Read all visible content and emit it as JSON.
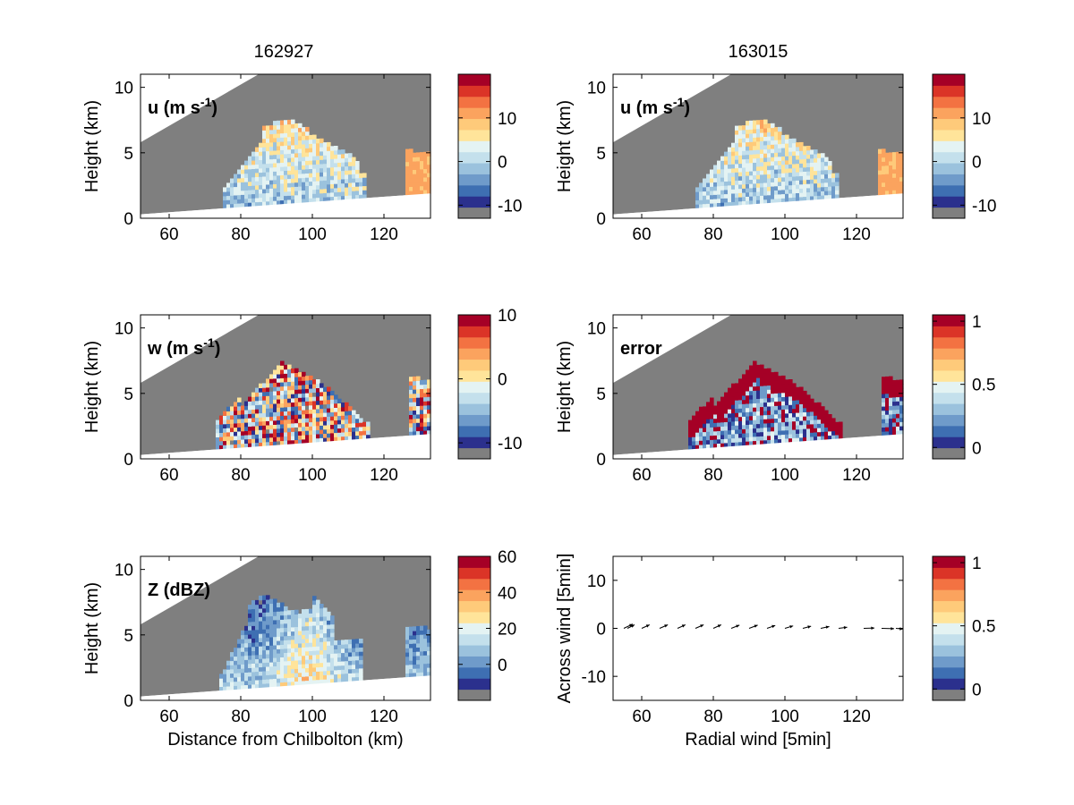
{
  "chart_data": {
    "type": "heatmap",
    "column_titles": [
      "162927",
      "163015"
    ],
    "palette": [
      "#7f7f7f",
      "#2b308d",
      "#3e6fb2",
      "#6f9bca",
      "#9bc2dd",
      "#c4e0ec",
      "#e4f3f3",
      "#ffe49a",
      "#feca7a",
      "#fba35e",
      "#f37242",
      "#db3427",
      "#a50026"
    ],
    "panels": [
      {
        "id": "u-162927",
        "type": "heatmap",
        "label": "u (m s",
        "label_sup": "-1",
        "label_tail": ")",
        "ylabel": "Height (km)",
        "xlabel": "",
        "xlim": [
          52,
          133
        ],
        "ylim": [
          0,
          11
        ],
        "xticks": [
          60,
          80,
          100,
          120
        ],
        "yticks": [
          0,
          5,
          10
        ],
        "colorbar": {
          "min": -13,
          "max": 20,
          "ticks": [
            -10,
            0,
            10
          ]
        },
        "pattern": "u",
        "seed": 11
      },
      {
        "id": "u-163015",
        "type": "heatmap",
        "label": "u (m s",
        "label_sup": "-1",
        "label_tail": ")",
        "ylabel": "Height (km)",
        "xlabel": "",
        "xlim": [
          52,
          133
        ],
        "ylim": [
          0,
          11
        ],
        "xticks": [
          60,
          80,
          100,
          120
        ],
        "yticks": [
          0,
          5,
          10
        ],
        "colorbar": {
          "min": -13,
          "max": 20,
          "ticks": [
            -10,
            0,
            10
          ]
        },
        "pattern": "u",
        "seed": 12
      },
      {
        "id": "w-162927",
        "type": "heatmap",
        "label": "w (m s",
        "label_sup": "-1",
        "label_tail": ")",
        "ylabel": "Height (km)",
        "xlabel": "",
        "xlim": [
          52,
          133
        ],
        "ylim": [
          0,
          11
        ],
        "xticks": [
          60,
          80,
          100,
          120
        ],
        "yticks": [
          0,
          5,
          10
        ],
        "colorbar": {
          "min": -12.5,
          "max": 10,
          "ticks": [
            -10,
            0,
            10
          ]
        },
        "pattern": "w",
        "seed": 21
      },
      {
        "id": "error-163015",
        "type": "heatmap",
        "label": "error",
        "label_sup": "",
        "label_tail": "",
        "ylabel": "Height (km)",
        "xlabel": "",
        "xlim": [
          52,
          133
        ],
        "ylim": [
          0,
          11
        ],
        "xticks": [
          60,
          80,
          100,
          120
        ],
        "yticks": [
          0,
          5,
          10
        ],
        "colorbar": {
          "min": -0.09,
          "max": 1.05,
          "ticks": [
            0,
            0.5,
            1
          ]
        },
        "pattern": "error",
        "seed": 31
      },
      {
        "id": "z-162927",
        "type": "heatmap",
        "label": "Z (dBZ)",
        "label_sup": "",
        "label_tail": "",
        "ylabel": "Height (km)",
        "xlabel": "Distance from Chilbolton (km)",
        "xlim": [
          52,
          133
        ],
        "ylim": [
          0,
          11
        ],
        "xticks": [
          60,
          80,
          100,
          120
        ],
        "yticks": [
          0,
          5,
          10
        ],
        "colorbar": {
          "min": -20,
          "max": 60,
          "ticks": [
            0,
            20,
            40,
            60
          ]
        },
        "pattern": "z",
        "seed": 41
      },
      {
        "id": "wind-vectors",
        "type": "quiver",
        "label": "",
        "label_sup": "",
        "label_tail": "",
        "ylabel": "Across wind [5min]",
        "xlabel": "Radial wind [5min]",
        "xlim": [
          52,
          133
        ],
        "ylim": [
          -15,
          15
        ],
        "xticks": [
          60,
          80,
          100,
          120
        ],
        "yticks": [
          -10,
          0,
          10
        ],
        "colorbar": {
          "min": -0.09,
          "max": 1.05,
          "ticks": [
            0,
            0.5,
            1
          ]
        },
        "vectors": [
          {
            "x": 55,
            "y": 0,
            "u": 2.5,
            "v": 1.2
          },
          {
            "x": 56,
            "y": 0,
            "u": 2.0,
            "v": 1.0
          },
          {
            "x": 60,
            "y": 0,
            "u": 2.2,
            "v": 1.0
          },
          {
            "x": 65,
            "y": 0,
            "u": 2.3,
            "v": 1.0
          },
          {
            "x": 70,
            "y": 0,
            "u": 2.2,
            "v": 1.0
          },
          {
            "x": 75,
            "y": 0,
            "u": 2.3,
            "v": 1.0
          },
          {
            "x": 80,
            "y": 0,
            "u": 2.2,
            "v": 1.0
          },
          {
            "x": 85,
            "y": 0,
            "u": 2.3,
            "v": 0.9
          },
          {
            "x": 90,
            "y": 0,
            "u": 2.4,
            "v": 0.9
          },
          {
            "x": 95,
            "y": 0,
            "u": 2.3,
            "v": 0.8
          },
          {
            "x": 100,
            "y": 0,
            "u": 2.3,
            "v": 0.7
          },
          {
            "x": 105,
            "y": 0,
            "u": 2.3,
            "v": 0.6
          },
          {
            "x": 110,
            "y": 0,
            "u": 2.4,
            "v": 0.5
          },
          {
            "x": 115,
            "y": 0,
            "u": 2.4,
            "v": 0.3
          },
          {
            "x": 122,
            "y": 0,
            "u": 3.0,
            "v": 0.1
          },
          {
            "x": 127,
            "y": 0,
            "u": 3.5,
            "v": -0.1
          },
          {
            "x": 131,
            "y": 0,
            "u": 2.0,
            "v": -0.2
          }
        ]
      }
    ]
  }
}
